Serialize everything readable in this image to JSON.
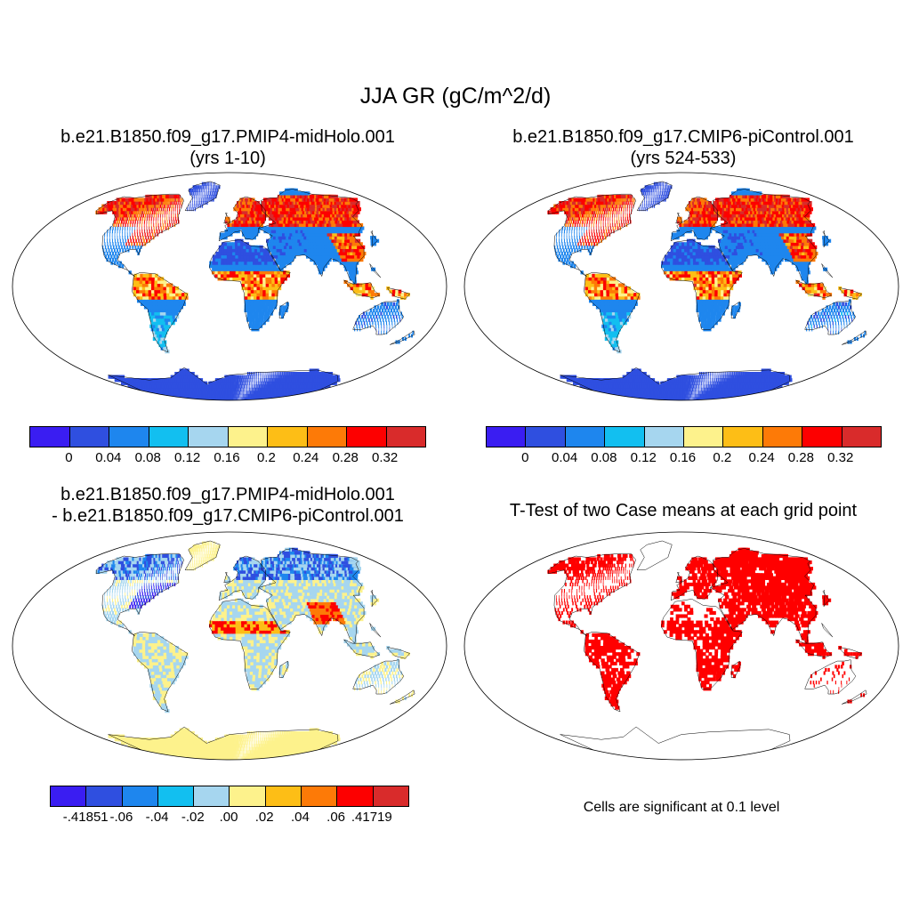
{
  "title": "JJA GR (gC/m^2/d)",
  "palette": [
    "#3a1df2",
    "#2f4fe0",
    "#1e86ee",
    "#12bff0",
    "#a6d6ef",
    "#fdf28c",
    "#fdbe16",
    "#fd7a07",
    "#fd0000",
    "#d92b2b"
  ],
  "map_colors": {
    "low": "#2f5ae4",
    "mid": "#7fd0f0",
    "high": "#e11b13",
    "yellow": "#fdf08a",
    "sig": "#ff0000",
    "ocean": "#ffffff"
  },
  "panels": [
    {
      "title_line1": "b.e21.B1850.f09_g17.PMIP4-midHolo.001",
      "title_line2": "(yrs 1-10)",
      "type": "field"
    },
    {
      "title_line1": "b.e21.B1850.f09_g17.CMIP6-piControl.001",
      "title_line2": "(yrs 524-533)",
      "type": "field"
    },
    {
      "title_line1": "b.e21.B1850.f09_g17.PMIP4-midHolo.001",
      "title_line2": "- b.e21.B1850.f09_g17.CMIP6-piControl.001",
      "type": "difference"
    },
    {
      "title_line1": "T-Test of two Case means at each grid point",
      "type": "significance",
      "note": "Cells are significant at 0.1 level"
    }
  ],
  "colorbar_field": {
    "labels": [
      "0",
      "0.04",
      "0.08",
      "0.12",
      "0.16",
      "0.2",
      "0.24",
      "0.28",
      "0.32"
    ]
  },
  "colorbar_diff": {
    "labels": [
      "-.41851",
      "-.06",
      "-.04",
      "-.02",
      ".00",
      ".02",
      ".04",
      ".06",
      ".41719"
    ]
  }
}
